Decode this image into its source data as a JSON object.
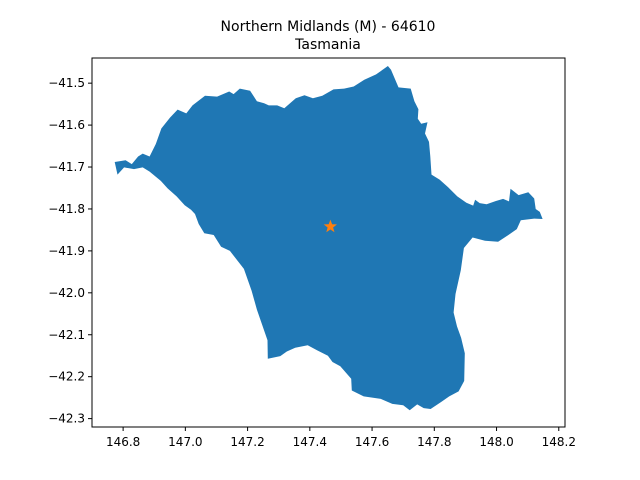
{
  "chart_data": {
    "type": "map",
    "title": "Northern Midlands (M) - 64610",
    "subtitle": "Tasmania",
    "xlabel": "",
    "ylabel": "",
    "xlim": [
      146.7,
      148.22
    ],
    "ylim": [
      -42.32,
      -41.44
    ],
    "x_ticks": [
      146.8,
      147.0,
      147.2,
      147.4,
      147.6,
      147.8,
      148.0,
      148.2
    ],
    "x_tick_labels": [
      "146.8",
      "147.0",
      "147.2",
      "147.4",
      "147.6",
      "147.8",
      "148.0",
      "148.2"
    ],
    "y_ticks": [
      -41.5,
      -41.6,
      -41.7,
      -41.8,
      -41.9,
      -42.0,
      -42.1,
      -42.2,
      -42.3
    ],
    "y_tick_labels": [
      "−41.5",
      "−41.6",
      "−41.7",
      "−41.8",
      "−41.9",
      "−42.0",
      "−42.1",
      "−42.2",
      "−42.3"
    ],
    "grid": false,
    "region_color": "#1f77b4",
    "marker_color": "#ff7f0e",
    "marker_icon": "star-icon",
    "centroid": [
      147.466,
      -41.842
    ],
    "outline": [
      [
        146.773,
        -41.688
      ],
      [
        146.808,
        -41.684
      ],
      [
        146.828,
        -41.693
      ],
      [
        146.848,
        -41.675
      ],
      [
        146.863,
        -41.668
      ],
      [
        146.885,
        -41.675
      ],
      [
        146.905,
        -41.645
      ],
      [
        146.923,
        -41.608
      ],
      [
        146.951,
        -41.582
      ],
      [
        146.975,
        -41.563
      ],
      [
        147.003,
        -41.572
      ],
      [
        147.023,
        -41.553
      ],
      [
        147.063,
        -41.53
      ],
      [
        147.102,
        -41.532
      ],
      [
        147.141,
        -41.52
      ],
      [
        147.155,
        -41.526
      ],
      [
        147.175,
        -41.513
      ],
      [
        147.208,
        -41.518
      ],
      [
        147.23,
        -41.543
      ],
      [
        147.253,
        -41.548
      ],
      [
        147.268,
        -41.553
      ],
      [
        147.295,
        -41.553
      ],
      [
        147.318,
        -41.56
      ],
      [
        147.355,
        -41.536
      ],
      [
        147.383,
        -41.529
      ],
      [
        147.41,
        -41.536
      ],
      [
        147.44,
        -41.53
      ],
      [
        147.476,
        -41.515
      ],
      [
        147.51,
        -41.513
      ],
      [
        147.541,
        -41.508
      ],
      [
        147.575,
        -41.492
      ],
      [
        147.613,
        -41.479
      ],
      [
        147.651,
        -41.459
      ],
      [
        147.661,
        -41.468
      ],
      [
        147.674,
        -41.491
      ],
      [
        147.685,
        -41.51
      ],
      [
        147.724,
        -41.513
      ],
      [
        147.736,
        -41.543
      ],
      [
        147.749,
        -41.562
      ],
      [
        147.747,
        -41.585
      ],
      [
        147.758,
        -41.597
      ],
      [
        147.778,
        -41.593
      ],
      [
        147.77,
        -41.62
      ],
      [
        147.783,
        -41.64
      ],
      [
        147.787,
        -41.675
      ],
      [
        147.791,
        -41.718
      ],
      [
        147.817,
        -41.73
      ],
      [
        147.844,
        -41.748
      ],
      [
        147.874,
        -41.77
      ],
      [
        147.903,
        -41.785
      ],
      [
        147.925,
        -41.792
      ],
      [
        147.931,
        -41.778
      ],
      [
        147.946,
        -41.786
      ],
      [
        147.968,
        -41.789
      ],
      [
        147.998,
        -41.781
      ],
      [
        148.021,
        -41.776
      ],
      [
        148.04,
        -41.782
      ],
      [
        148.045,
        -41.752
      ],
      [
        148.071,
        -41.767
      ],
      [
        148.102,
        -41.76
      ],
      [
        148.121,
        -41.775
      ],
      [
        148.126,
        -41.8
      ],
      [
        148.139,
        -41.807
      ],
      [
        148.148,
        -41.824
      ],
      [
        148.121,
        -41.823
      ],
      [
        148.078,
        -41.827
      ],
      [
        148.065,
        -41.848
      ],
      [
        148.038,
        -41.862
      ],
      [
        148.005,
        -41.878
      ],
      [
        147.963,
        -41.876
      ],
      [
        147.923,
        -41.868
      ],
      [
        147.895,
        -41.893
      ],
      [
        147.885,
        -41.946
      ],
      [
        147.868,
        -42.003
      ],
      [
        147.862,
        -42.047
      ],
      [
        147.873,
        -42.08
      ],
      [
        147.886,
        -42.107
      ],
      [
        147.898,
        -42.144
      ],
      [
        147.896,
        -42.21
      ],
      [
        147.878,
        -42.235
      ],
      [
        147.848,
        -42.247
      ],
      [
        147.823,
        -42.26
      ],
      [
        147.788,
        -42.277
      ],
      [
        147.766,
        -42.275
      ],
      [
        147.745,
        -42.266
      ],
      [
        147.721,
        -42.28
      ],
      [
        147.7,
        -42.268
      ],
      [
        147.665,
        -42.265
      ],
      [
        147.628,
        -42.253
      ],
      [
        147.573,
        -42.247
      ],
      [
        147.535,
        -42.233
      ],
      [
        147.533,
        -42.205
      ],
      [
        147.498,
        -42.175
      ],
      [
        147.473,
        -42.165
      ],
      [
        147.458,
        -42.15
      ],
      [
        147.423,
        -42.137
      ],
      [
        147.393,
        -42.125
      ],
      [
        147.353,
        -42.131
      ],
      [
        147.326,
        -42.14
      ],
      [
        147.305,
        -42.151
      ],
      [
        147.265,
        -42.157
      ],
      [
        147.264,
        -42.113
      ],
      [
        147.23,
        -42.04
      ],
      [
        147.213,
        -41.995
      ],
      [
        147.188,
        -41.943
      ],
      [
        147.143,
        -41.9
      ],
      [
        147.115,
        -41.89
      ],
      [
        147.091,
        -41.862
      ],
      [
        147.061,
        -41.858
      ],
      [
        147.043,
        -41.836
      ],
      [
        147.031,
        -41.812
      ],
      [
        147.018,
        -41.802
      ],
      [
        146.998,
        -41.791
      ],
      [
        146.972,
        -41.77
      ],
      [
        146.943,
        -41.751
      ],
      [
        146.921,
        -41.733
      ],
      [
        146.885,
        -41.711
      ],
      [
        146.863,
        -41.701
      ],
      [
        146.835,
        -41.705
      ],
      [
        146.803,
        -41.701
      ],
      [
        146.782,
        -41.718
      ]
    ]
  }
}
